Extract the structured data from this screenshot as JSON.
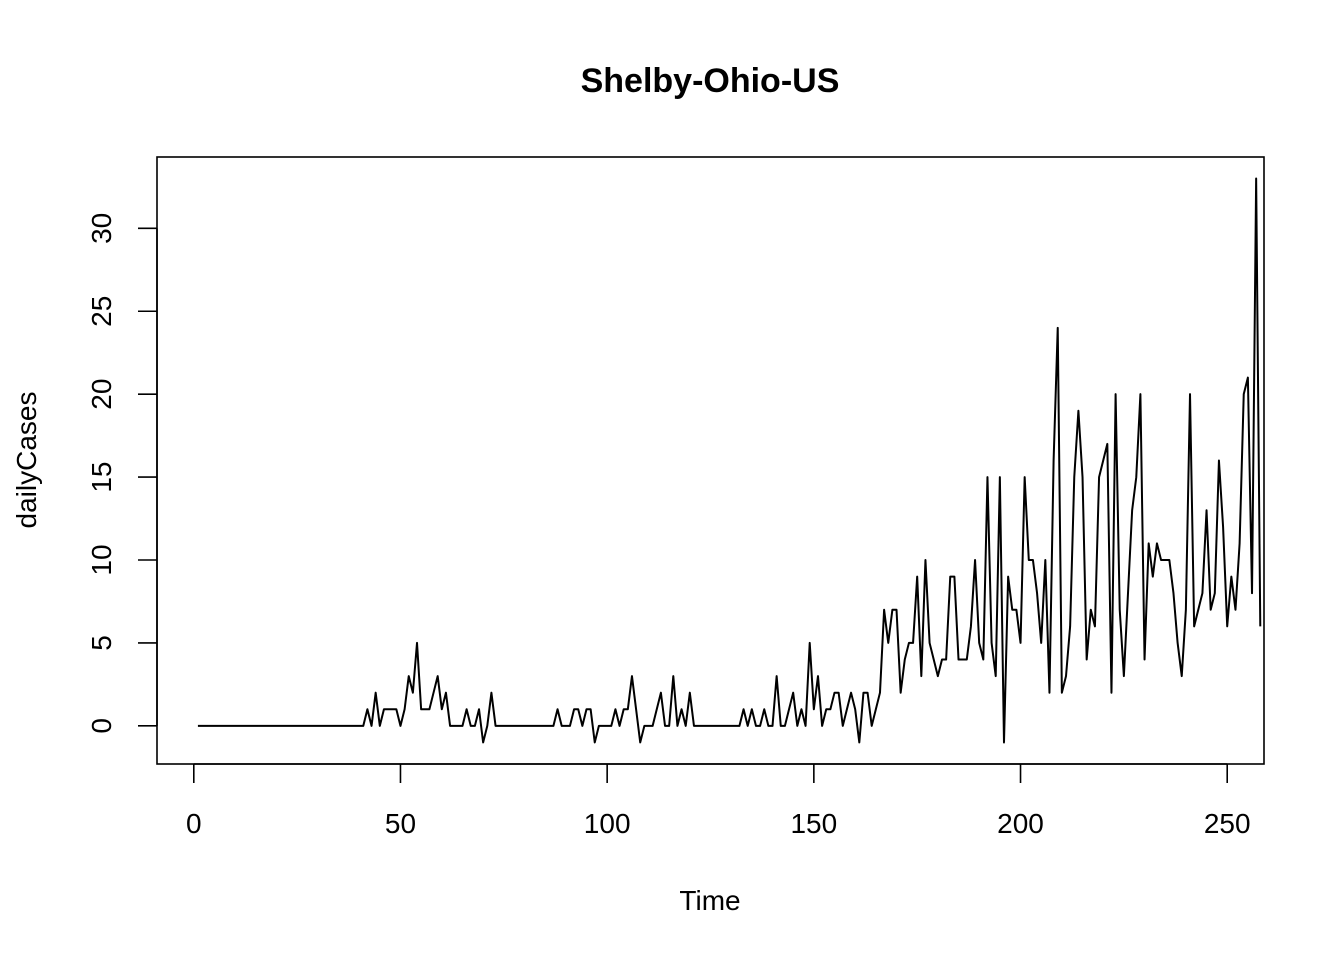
{
  "chart_data": {
    "type": "line",
    "title": "Shelby-Ohio-US",
    "xlabel": "Time",
    "ylabel": "dailyCases",
    "xlim": [
      -8.9,
      258.9
    ],
    "ylim": [
      -2.3,
      34.3
    ],
    "xticks": [
      0,
      50,
      100,
      150,
      200,
      250
    ],
    "yticks": [
      0,
      5,
      10,
      15,
      20,
      25,
      30
    ],
    "grid": false,
    "legend": "none",
    "line_color": "#000000",
    "series": [
      {
        "x_start": 1,
        "values": [
          0,
          0,
          0,
          0,
          0,
          0,
          0,
          0,
          0,
          0,
          0,
          0,
          0,
          0,
          0,
          0,
          0,
          0,
          0,
          0,
          0,
          0,
          0,
          0,
          0,
          0,
          0,
          0,
          0,
          0,
          0,
          0,
          0,
          0,
          0,
          0,
          0,
          0,
          0,
          0,
          0,
          1,
          0,
          2,
          0,
          1,
          1,
          1,
          1,
          0,
          1,
          3,
          2,
          5,
          1,
          1,
          1,
          2,
          3,
          1,
          2,
          0,
          0,
          0,
          0,
          1,
          0,
          0,
          1,
          -1,
          0,
          2,
          0,
          0,
          0,
          0,
          0,
          0,
          0,
          0,
          0,
          0,
          0,
          0,
          0,
          0,
          0,
          1,
          0,
          0,
          0,
          1,
          1,
          0,
          1,
          1,
          -1,
          0,
          0,
          0,
          0,
          1,
          0,
          1,
          1,
          3,
          1,
          -1,
          0,
          0,
          0,
          1,
          2,
          0,
          0,
          3,
          0,
          1,
          0,
          2,
          0,
          0,
          0,
          0,
          0,
          0,
          0,
          0,
          0,
          0,
          0,
          0,
          1,
          0,
          1,
          0,
          0,
          1,
          0,
          0,
          3,
          0,
          0,
          1,
          2,
          0,
          1,
          0,
          5,
          1,
          3,
          0,
          1,
          1,
          2,
          2,
          0,
          1,
          2,
          1,
          -1,
          2,
          2,
          0,
          1,
          2,
          7,
          5,
          7,
          7,
          2,
          4,
          5,
          5,
          9,
          3,
          10,
          5,
          4,
          3,
          4,
          4,
          9,
          9,
          4,
          4,
          4,
          6,
          10,
          5,
          4,
          15,
          5,
          3,
          15,
          -1,
          9,
          7,
          7,
          5,
          15,
          10,
          10,
          8,
          5,
          10,
          2,
          16,
          24,
          2,
          3,
          6,
          15,
          19,
          15,
          4,
          7,
          6,
          15,
          16,
          17,
          2,
          20,
          7,
          3,
          8,
          13,
          15,
          20,
          4,
          11,
          9,
          11,
          10,
          10,
          10,
          8,
          5,
          3,
          7,
          20,
          6,
          7,
          8,
          13,
          7,
          8,
          16,
          12,
          6,
          9,
          7,
          11,
          20,
          21,
          8,
          33,
          6
        ]
      }
    ]
  }
}
